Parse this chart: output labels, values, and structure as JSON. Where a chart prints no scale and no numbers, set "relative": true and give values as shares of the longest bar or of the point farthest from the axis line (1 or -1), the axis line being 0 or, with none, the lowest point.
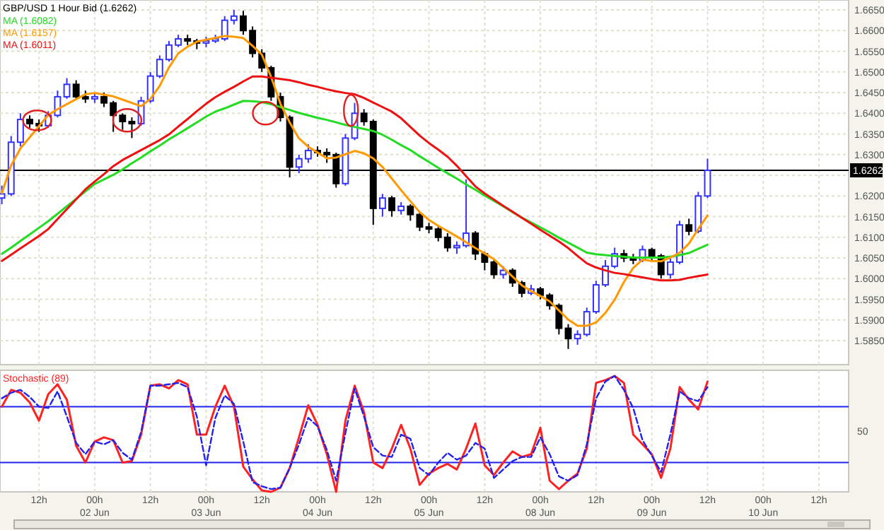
{
  "chart_data": [
    {
      "type": "candlestick",
      "title": "GBP/USD 1 Hour Bid (1.6262)",
      "legend": "top left",
      "grid": true,
      "tick_labels": "y",
      "categories": [
        null,
        null,
        null,
        null,
        null,
        null,
        null,
        null,
        null,
        null,
        null,
        null,
        null,
        null,
        null,
        null,
        null,
        null,
        null,
        null,
        null,
        null,
        null,
        null,
        null,
        null,
        null,
        null,
        null,
        null,
        null,
        null,
        null,
        null,
        null,
        null,
        null,
        null,
        null,
        null,
        null,
        null,
        null,
        null,
        null,
        null,
        null,
        null,
        null,
        null,
        null,
        null,
        null,
        null,
        null,
        null,
        null,
        null,
        null,
        null,
        null,
        null,
        null,
        null,
        null,
        null,
        null,
        null,
        null,
        null,
        null,
        null,
        null,
        null,
        null,
        null,
        null,
        null,
        null,
        null,
        null,
        null,
        null,
        null,
        null,
        null,
        null,
        null,
        null,
        null,
        null,
        null
      ],
      "ylim": [
        1.5792,
        1.6674
      ],
      "yticks": [
        {
          "value": 1.585,
          "label": "1.5850"
        },
        {
          "value": 1.59,
          "label": "1.5900"
        },
        {
          "value": 1.595,
          "label": "1.5950"
        },
        {
          "value": 1.6,
          "label": "1.6000"
        },
        {
          "value": 1.605,
          "label": "1.6050"
        },
        {
          "value": 1.61,
          "label": "1.6100"
        },
        {
          "value": 1.615,
          "label": "1.6150"
        },
        {
          "value": 1.62,
          "label": "1.6200"
        },
        {
          "value": 1.625,
          "label": null
        },
        {
          "value": 1.63,
          "label": "1.6300"
        },
        {
          "value": 1.635,
          "label": "1.6350"
        },
        {
          "value": 1.64,
          "label": "1.6400"
        },
        {
          "value": 1.645,
          "label": "1.6450"
        },
        {
          "value": 1.65,
          "label": "1.6500"
        },
        {
          "value": 1.655,
          "label": "1.6550"
        },
        {
          "value": 1.66,
          "label": "1.6600"
        },
        {
          "value": 1.665,
          "label": "1.6650"
        }
      ],
      "ref_lines": [
        {
          "axis": "y",
          "value": 1.6262,
          "label": "1.6262",
          "color": "#000000"
        }
      ],
      "ohlc": [
        [
          1.6195,
          1.6225,
          1.618,
          1.6205
        ],
        [
          1.6205,
          1.6345,
          1.62,
          1.633
        ],
        [
          1.633,
          1.64,
          1.632,
          1.6385
        ],
        [
          1.6385,
          1.6395,
          1.6365,
          1.6375
        ],
        [
          1.6375,
          1.6385,
          1.6355,
          1.637
        ],
        [
          1.637,
          1.6405,
          1.6365,
          1.6395
        ],
        [
          1.6395,
          1.6455,
          1.639,
          1.644
        ],
        [
          1.644,
          1.6485,
          1.6435,
          1.647
        ],
        [
          1.647,
          1.648,
          1.6435,
          1.644
        ],
        [
          1.644,
          1.6455,
          1.6425,
          1.6435
        ],
        [
          1.6435,
          1.645,
          1.6425,
          1.644
        ],
        [
          1.644,
          1.645,
          1.6415,
          1.6425
        ],
        [
          1.6425,
          1.643,
          1.6355,
          1.6395
        ],
        [
          1.6395,
          1.64,
          1.636,
          1.638
        ],
        [
          1.638,
          1.639,
          1.634,
          1.6375
        ],
        [
          1.6375,
          1.644,
          1.637,
          1.643
        ],
        [
          1.643,
          1.65,
          1.6425,
          1.649
        ],
        [
          1.649,
          1.654,
          1.6485,
          1.653
        ],
        [
          1.653,
          1.6575,
          1.6525,
          1.6565
        ],
        [
          1.6565,
          1.659,
          1.656,
          1.658
        ],
        [
          1.658,
          1.659,
          1.6565,
          1.6575
        ],
        [
          1.6575,
          1.658,
          1.6555,
          1.657
        ],
        [
          1.657,
          1.6585,
          1.656,
          1.6575
        ],
        [
          1.6575,
          1.659,
          1.657,
          1.658
        ],
        [
          1.658,
          1.6635,
          1.6575,
          1.6625
        ],
        [
          1.6625,
          1.665,
          1.6615,
          1.6635
        ],
        [
          1.6635,
          1.6648,
          1.659,
          1.66
        ],
        [
          1.66,
          1.661,
          1.6535,
          1.6545
        ],
        [
          1.6545,
          1.6555,
          1.65,
          1.651
        ],
        [
          1.651,
          1.6515,
          1.643,
          1.644
        ],
        [
          1.644,
          1.645,
          1.638,
          1.639
        ],
        [
          1.639,
          1.6395,
          1.6245,
          1.627
        ],
        [
          1.627,
          1.63,
          1.6255,
          1.629
        ],
        [
          1.629,
          1.6325,
          1.628,
          1.631
        ],
        [
          1.631,
          1.632,
          1.6295,
          1.6305
        ],
        [
          1.6305,
          1.6315,
          1.628,
          1.63
        ],
        [
          1.63,
          1.6305,
          1.622,
          1.623
        ],
        [
          1.623,
          1.635,
          1.6225,
          1.634
        ],
        [
          1.634,
          1.6425,
          1.6335,
          1.64
        ],
        [
          1.64,
          1.641,
          1.637,
          1.638
        ],
        [
          1.638,
          1.6385,
          1.613,
          1.617
        ],
        [
          1.617,
          1.6205,
          1.615,
          1.6195
        ],
        [
          1.6195,
          1.62,
          1.615,
          1.6165
        ],
        [
          1.6165,
          1.6185,
          1.6155,
          1.6175
        ],
        [
          1.6175,
          1.618,
          1.614,
          1.6155
        ],
        [
          1.6155,
          1.616,
          1.6115,
          1.6125
        ],
        [
          1.6125,
          1.6135,
          1.611,
          1.612
        ],
        [
          1.612,
          1.6125,
          1.609,
          1.61
        ],
        [
          1.61,
          1.611,
          1.6065,
          1.6075
        ],
        [
          1.6075,
          1.609,
          1.606,
          1.608
        ],
        [
          1.608,
          1.624,
          1.6075,
          1.611
        ],
        [
          1.611,
          1.6115,
          1.6045,
          1.606
        ],
        [
          1.606,
          1.6065,
          1.602,
          1.604
        ],
        [
          1.604,
          1.6045,
          1.6,
          1.601
        ],
        [
          1.601,
          1.603,
          1.6,
          1.602
        ],
        [
          1.602,
          1.6025,
          1.598,
          1.599
        ],
        [
          1.599,
          1.5995,
          1.5955,
          1.5965
        ],
        [
          1.5965,
          1.5985,
          1.596,
          1.5975
        ],
        [
          1.5975,
          1.598,
          1.595,
          1.596
        ],
        [
          1.596,
          1.5965,
          1.5925,
          1.5935
        ],
        [
          1.5935,
          1.594,
          1.5865,
          1.588
        ],
        [
          1.588,
          1.589,
          1.583,
          1.5855
        ],
        [
          1.5855,
          1.5875,
          1.584,
          1.5865
        ],
        [
          1.5865,
          1.593,
          1.586,
          1.592
        ],
        [
          1.592,
          1.5995,
          1.5915,
          1.5985
        ],
        [
          1.5985,
          1.6045,
          1.598,
          1.603
        ],
        [
          1.603,
          1.6075,
          1.6025,
          1.606
        ],
        [
          1.606,
          1.607,
          1.604,
          1.605
        ],
        [
          1.605,
          1.606,
          1.6035,
          1.6045
        ],
        [
          1.6045,
          1.608,
          1.604,
          1.607
        ],
        [
          1.607,
          1.6075,
          1.6045,
          1.6055
        ],
        [
          1.6055,
          1.606,
          1.6,
          1.601
        ],
        [
          1.601,
          1.605,
          1.6,
          1.604
        ],
        [
          1.604,
          1.614,
          1.6035,
          1.613
        ],
        [
          1.613,
          1.6145,
          1.6105,
          1.6115
        ],
        [
          1.6115,
          1.621,
          1.611,
          1.62
        ],
        [
          1.62,
          1.629,
          1.6195,
          1.6262
        ],
        null,
        null,
        null,
        null,
        null,
        null,
        null,
        null,
        null,
        null,
        null,
        null,
        null,
        null,
        null
      ],
      "series": [
        {
          "type": "line",
          "name": "MA (1.6082)",
          "color": "#22dd22",
          "values": [
            1.606,
            1.6075,
            1.6091,
            1.6107,
            1.6123,
            1.6139,
            1.6157,
            1.6175,
            1.6193,
            1.6211,
            1.6229,
            1.624,
            1.6251,
            1.6264,
            1.6279,
            1.6293,
            1.6308,
            1.6322,
            1.6337,
            1.635,
            1.6364,
            1.6378,
            1.6392,
            1.6404,
            1.6412,
            1.6421,
            1.643,
            1.6429,
            1.6427,
            1.6422,
            1.6415,
            1.6408,
            1.6401,
            1.6395,
            1.6389,
            1.6384,
            1.6378,
            1.6372,
            1.6367,
            1.6362,
            1.6357,
            1.6348,
            1.6336,
            1.6323,
            1.6311,
            1.6296,
            1.6282,
            1.6268,
            1.6255,
            1.6242,
            1.6228,
            1.6215,
            1.6201,
            1.6188,
            1.6175,
            1.6161,
            1.6148,
            1.6136,
            1.6124,
            1.6112,
            1.6099,
            1.6087,
            1.6075,
            1.6063,
            1.6059,
            1.6057,
            1.6055,
            1.6053,
            1.6051,
            1.6051,
            1.6051,
            1.6051,
            1.6053,
            1.6057,
            1.6062,
            1.6072,
            1.6082,
            null,
            null,
            null,
            null,
            null,
            null,
            null,
            null,
            null,
            null,
            null,
            null,
            null,
            null,
            null
          ]
        },
        {
          "type": "line",
          "name": "MA (1.6157)",
          "color": "#ff9900",
          "values": [
            1.6207,
            1.6274,
            1.6315,
            1.6342,
            1.6369,
            1.6396,
            1.641,
            1.6422,
            1.6434,
            1.6446,
            1.6449,
            1.6445,
            1.6441,
            1.6433,
            1.6425,
            1.6417,
            1.6435,
            1.6466,
            1.6511,
            1.6545,
            1.6561,
            1.6573,
            1.6578,
            1.6582,
            1.6587,
            1.6585,
            1.6582,
            1.6563,
            1.6542,
            1.6488,
            1.6423,
            1.6378,
            1.6339,
            1.6319,
            1.6305,
            1.6291,
            1.6293,
            1.6301,
            1.6309,
            1.6303,
            1.6291,
            1.627,
            1.6242,
            1.6214,
            1.6187,
            1.6161,
            1.6142,
            1.6128,
            1.6115,
            1.6102,
            1.6088,
            1.6074,
            1.6061,
            1.6047,
            1.6026,
            1.6005,
            1.5984,
            1.597,
            1.5958,
            1.5945,
            1.5923,
            1.5901,
            1.5886,
            1.5886,
            1.5894,
            1.5917,
            1.5949,
            1.5992,
            1.6026,
            1.6046,
            1.6043,
            1.6042,
            1.6051,
            1.6063,
            1.6085,
            1.612,
            1.6153,
            null,
            null,
            null,
            null,
            null,
            null,
            null,
            null,
            null,
            null,
            null,
            null,
            null,
            null,
            null
          ]
        },
        {
          "type": "line",
          "name": "MA (1.6011)",
          "color": "#ee1111",
          "values": [
            1.6043,
            1.6058,
            1.6073,
            1.6088,
            1.6103,
            1.612,
            1.6144,
            1.6168,
            1.6192,
            1.6216,
            1.6235,
            1.6253,
            1.6272,
            1.6287,
            1.6299,
            1.6311,
            1.6323,
            1.6335,
            1.6349,
            1.6368,
            1.6386,
            1.6405,
            1.6423,
            1.6439,
            1.6452,
            1.6464,
            1.6477,
            1.6489,
            1.6489,
            1.6486,
            1.6483,
            1.648,
            1.6475,
            1.6469,
            1.6464,
            1.6458,
            1.6453,
            1.6449,
            1.6446,
            1.6437,
            1.6426,
            1.6415,
            1.6404,
            1.6388,
            1.6367,
            1.6346,
            1.6328,
            1.6312,
            1.6295,
            1.6273,
            1.6248,
            1.6223,
            1.6206,
            1.6191,
            1.6176,
            1.6162,
            1.6147,
            1.6133,
            1.6118,
            1.6104,
            1.609,
            1.6074,
            1.6055,
            1.6037,
            1.6027,
            1.602,
            1.6014,
            1.6011,
            1.6007,
            1.6003,
            1.5999,
            1.5996,
            1.5996,
            1.5997,
            1.6002,
            1.6006,
            1.601,
            null,
            null,
            null,
            null,
            null,
            null,
            null,
            null,
            null,
            null,
            null,
            null,
            null,
            null,
            null
          ]
        }
      ]
    },
    {
      "type": "line",
      "title": "Stochastic (89)",
      "grid": true,
      "relative": true,
      "categories": [
        null,
        null,
        null,
        null,
        "12h",
        null,
        null,
        null,
        null,
        null,
        "00h\n02 Jun",
        null,
        null,
        null,
        null,
        null,
        "12h",
        null,
        null,
        null,
        null,
        null,
        "00h\n03 Jun",
        null,
        null,
        null,
        null,
        null,
        "12h",
        null,
        null,
        null,
        null,
        null,
        "00h\n04 Jun",
        null,
        null,
        null,
        null,
        null,
        "12h",
        null,
        null,
        null,
        null,
        null,
        "00h\n05 Jun",
        null,
        null,
        null,
        null,
        null,
        "12h",
        null,
        null,
        null,
        null,
        null,
        "00h\n08 Jun",
        null,
        null,
        null,
        null,
        null,
        "12h",
        null,
        null,
        null,
        null,
        null,
        "00h\n09 Jun",
        null,
        null,
        null,
        null,
        null,
        "12h",
        null,
        null,
        null,
        null,
        null,
        "00h\n10 Jun",
        null,
        null,
        null,
        null,
        null,
        "12h",
        null,
        null,
        null
      ],
      "annotations": [
        "50"
      ],
      "ref_lines": [
        {
          "axis": "y",
          "value": 0.735,
          "color": "#2222ee"
        },
        {
          "axis": "y",
          "value": 0.253,
          "color": "#2222ee"
        }
      ],
      "series": [
        {
          "color": "#ff2222",
          "values": [
            0.735,
            0.88,
            0.855,
            0.771,
            0.614,
            0.843,
            0.928,
            0.795,
            0.398,
            0.253,
            0.434,
            0.47,
            0.446,
            0.253,
            0.265,
            0.494,
            0.916,
            0.928,
            0.892,
            0.964,
            0.928,
            0.494,
            0.494,
            0.735,
            0.916,
            0.735,
            0.217,
            0.108,
            0.012,
            0,
            0.036,
            0.205,
            0.47,
            0.747,
            0.578,
            0.325,
            0,
            0.614,
            0.916,
            0.687,
            0.253,
            0.205,
            0.373,
            0.578,
            0.373,
            0.06,
            0.157,
            0.205,
            0.241,
            0.193,
            0.373,
            0.59,
            0.229,
            0.145,
            0.253,
            0.349,
            0.301,
            0.325,
            0.554,
            0.096,
            0.024,
            0.096,
            0.157,
            0.373,
            0.94,
            0.964,
            1,
            0.94,
            0.494,
            0.41,
            0.325,
            0.12,
            0.373,
            0.904,
            0.795,
            0.711,
            0.952,
            null,
            null,
            null,
            null,
            null,
            null,
            null,
            null,
            null,
            null,
            null,
            null,
            null,
            null,
            null
          ]
        },
        {
          "color": "#2222ee",
          "line_style": "dashed",
          "values": [
            0.807,
            0.855,
            0.88,
            0.819,
            0.735,
            0.723,
            0.867,
            0.651,
            0.422,
            0.325,
            0.434,
            0.41,
            0.446,
            0.337,
            0.277,
            0.518,
            0.916,
            0.916,
            0.928,
            0.94,
            0.904,
            0.651,
            0.229,
            0.639,
            0.831,
            0.759,
            0.434,
            0.084,
            0.048,
            0.024,
            0.036,
            0.205,
            0.41,
            0.639,
            0.566,
            0.361,
            0.096,
            0.506,
            0.892,
            0.651,
            0.386,
            0.313,
            0.301,
            0.494,
            0.458,
            0.205,
            0.145,
            0.253,
            0.337,
            0.277,
            0.313,
            0.422,
            0.373,
            0.12,
            0.193,
            0.265,
            0.301,
            0.301,
            0.47,
            0.325,
            0.133,
            0.096,
            0.145,
            0.41,
            0.807,
            0.952,
            1,
            0.88,
            0.723,
            0.446,
            0.313,
            0.169,
            0.494,
            0.867,
            0.807,
            0.783,
            0.904,
            null,
            null,
            null,
            null,
            null,
            null,
            null,
            null,
            null,
            null,
            null,
            null,
            null,
            null,
            null
          ]
        }
      ]
    }
  ]
}
